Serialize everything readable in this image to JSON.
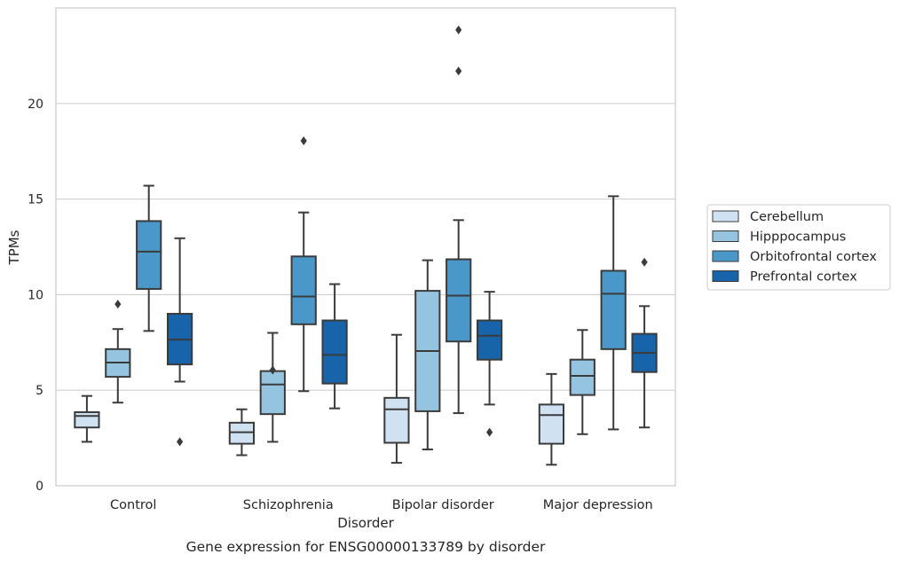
{
  "chart_data": {
    "type": "box",
    "title": "Gene expression for ENSG00000133789 by disorder",
    "xlabel": "Disorder",
    "ylabel": "TPMs",
    "ylim": [
      0,
      25
    ],
    "yticks": [
      0,
      5,
      10,
      15,
      20
    ],
    "grid": true,
    "legend_position": "right",
    "categories": [
      "Control",
      "Schizophrenia",
      "Bipolar disorder",
      "Major depression"
    ],
    "series": [
      {
        "name": "Cerebellum",
        "color": "#d0e1f2",
        "boxes": [
          {
            "whisker_low": 2.3,
            "q1": 3.05,
            "median": 3.65,
            "q3": 3.85,
            "whisker_high": 4.7,
            "outliers": []
          },
          {
            "whisker_low": 1.6,
            "q1": 2.2,
            "median": 2.8,
            "q3": 3.3,
            "whisker_high": 4.0,
            "outliers": []
          },
          {
            "whisker_low": 1.2,
            "q1": 2.25,
            "median": 4.0,
            "q3": 4.6,
            "whisker_high": 7.9,
            "outliers": []
          },
          {
            "whisker_low": 1.1,
            "q1": 2.2,
            "median": 3.7,
            "q3": 4.25,
            "whisker_high": 5.85,
            "outliers": []
          }
        ]
      },
      {
        "name": "Hipppocampus",
        "color": "#94c4df",
        "boxes": [
          {
            "whisker_low": 4.35,
            "q1": 5.7,
            "median": 6.45,
            "q3": 7.15,
            "whisker_high": 8.2,
            "outliers": [
              9.5
            ]
          },
          {
            "whisker_low": 2.3,
            "q1": 3.75,
            "median": 5.3,
            "q3": 6.0,
            "whisker_high": 8.0,
            "outliers": [
              6.05
            ]
          },
          {
            "whisker_low": 1.9,
            "q1": 3.9,
            "median": 7.05,
            "q3": 10.2,
            "whisker_high": 11.8,
            "outliers": []
          },
          {
            "whisker_low": 2.7,
            "q1": 4.75,
            "median": 5.75,
            "q3": 6.6,
            "whisker_high": 8.15,
            "outliers": []
          }
        ]
      },
      {
        "name": "Orbitofrontal cortex",
        "color": "#4a98c9",
        "boxes": [
          {
            "whisker_low": 8.1,
            "q1": 10.3,
            "median": 12.25,
            "q3": 13.85,
            "whisker_high": 15.7,
            "outliers": []
          },
          {
            "whisker_low": 4.95,
            "q1": 8.45,
            "median": 9.9,
            "q3": 12.0,
            "whisker_high": 14.3,
            "outliers": [
              18.05
            ]
          },
          {
            "whisker_low": 3.8,
            "q1": 7.55,
            "median": 9.95,
            "q3": 11.85,
            "whisker_high": 13.9,
            "outliers": [
              21.7,
              23.85
            ]
          },
          {
            "whisker_low": 2.95,
            "q1": 7.15,
            "median": 10.05,
            "q3": 11.25,
            "whisker_high": 15.15,
            "outliers": []
          }
        ]
      },
      {
        "name": "Prefrontal cortex",
        "color": "#1764ab",
        "boxes": [
          {
            "whisker_low": 5.45,
            "q1": 6.35,
            "median": 7.65,
            "q3": 9.0,
            "whisker_high": 12.95,
            "outliers": [
              2.3
            ]
          },
          {
            "whisker_low": 4.05,
            "q1": 5.35,
            "median": 6.85,
            "q3": 8.65,
            "whisker_high": 10.55,
            "outliers": []
          },
          {
            "whisker_low": 4.25,
            "q1": 6.6,
            "median": 7.85,
            "q3": 8.65,
            "whisker_high": 10.15,
            "outliers": [
              2.8
            ]
          },
          {
            "whisker_low": 3.05,
            "q1": 5.95,
            "median": 6.95,
            "q3": 7.95,
            "whisker_high": 9.4,
            "outliers": [
              11.7
            ]
          }
        ]
      }
    ]
  }
}
